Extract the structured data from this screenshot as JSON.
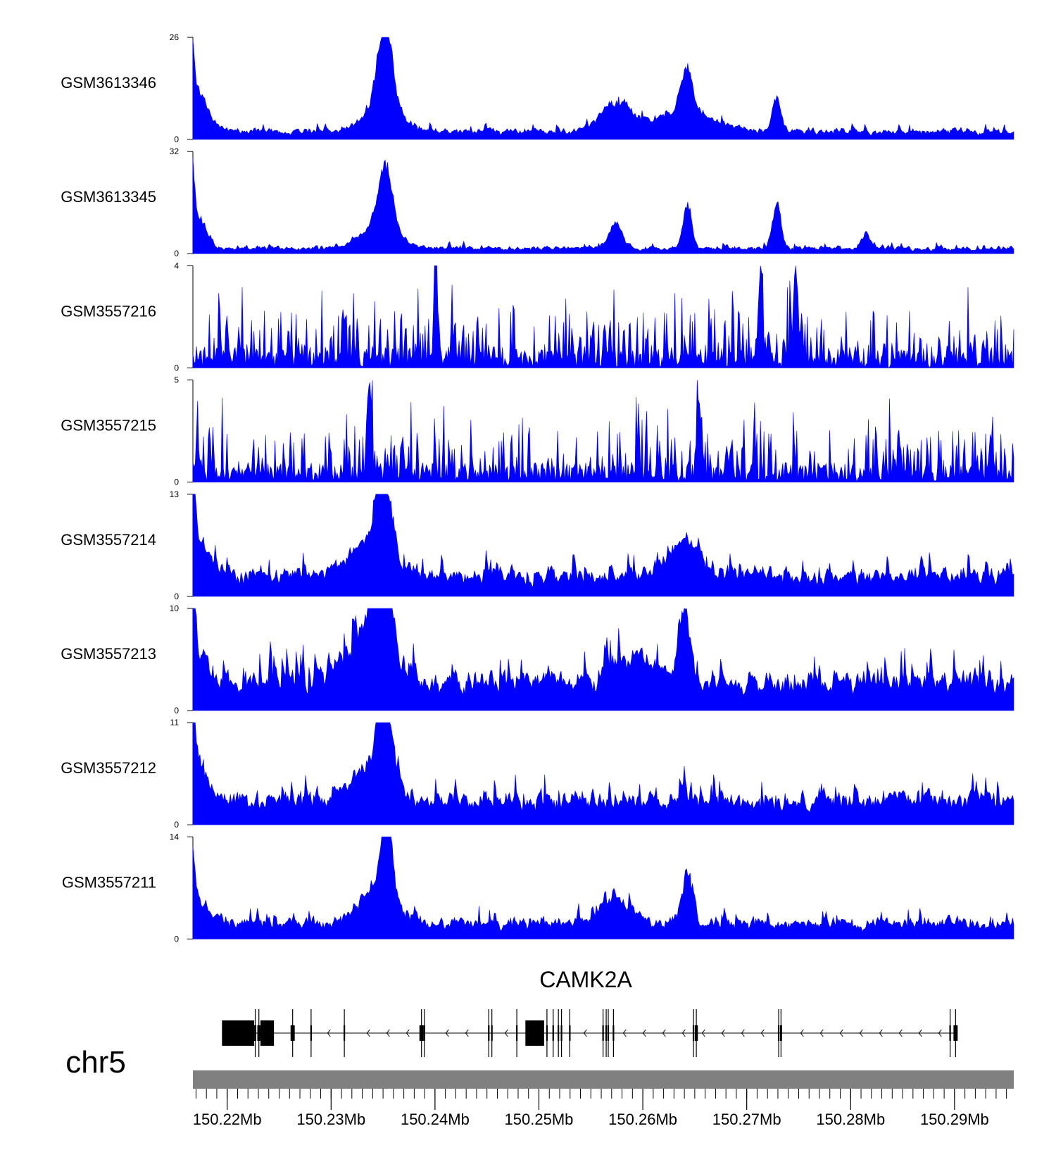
{
  "chart_data": {
    "type": "area",
    "description_free": true,
    "track_color": "#0000ff",
    "x_range": [
      150.2167,
      150.2957
    ],
    "x_units": "Mb",
    "tracks": [
      {
        "label": "GSM3613346",
        "ymax_label": "26",
        "ymin_label": "0",
        "ylim": [
          0,
          26
        ],
        "baseline": 1.2,
        "noise": 1.4,
        "seed": 11,
        "peaks": [
          {
            "pos": 150.2164,
            "height": 26,
            "width": 0.0003
          },
          {
            "pos": 150.2168,
            "height": 12,
            "width": 0.0012
          },
          {
            "pos": 150.2352,
            "height": 22,
            "width": 0.0006
          },
          {
            "pos": 150.235,
            "height": 11,
            "width": 0.0015
          },
          {
            "pos": 150.2574,
            "height": 8,
            "width": 0.0015
          },
          {
            "pos": 150.2642,
            "height": 13,
            "width": 0.0006
          },
          {
            "pos": 150.2642,
            "height": 5,
            "width": 0.003
          },
          {
            "pos": 150.2729,
            "height": 9,
            "width": 0.0004
          }
        ]
      },
      {
        "label": "GSM3613345",
        "ymax_label": "32",
        "ymin_label": "0",
        "ylim": [
          0,
          32
        ],
        "baseline": 1.0,
        "noise": 1.2,
        "seed": 23,
        "peaks": [
          {
            "pos": 150.2164,
            "height": 32,
            "width": 0.0003
          },
          {
            "pos": 150.2168,
            "height": 12,
            "width": 0.001
          },
          {
            "pos": 150.2352,
            "height": 22,
            "width": 0.0007
          },
          {
            "pos": 150.2347,
            "height": 7,
            "width": 0.0018
          },
          {
            "pos": 150.2574,
            "height": 9,
            "width": 0.0006
          },
          {
            "pos": 150.2643,
            "height": 16,
            "width": 0.0004
          },
          {
            "pos": 150.2729,
            "height": 16,
            "width": 0.0004
          },
          {
            "pos": 150.2815,
            "height": 5,
            "width": 0.0004
          }
        ]
      },
      {
        "label": "GSM3557216",
        "ymax_label": "4",
        "ymin_label": "0",
        "ylim": [
          0,
          4
        ],
        "baseline": 0.3,
        "noise": 1.4,
        "spiky": true,
        "seed": 37,
        "peaks": [
          {
            "pos": 150.2401,
            "height": 4,
            "width": 0.0002
          },
          {
            "pos": 150.2713,
            "height": 4,
            "width": 0.0002
          },
          {
            "pos": 150.2747,
            "height": 4,
            "width": 0.0002
          }
        ]
      },
      {
        "label": "GSM3557215",
        "ymax_label": "5",
        "ymin_label": "0",
        "ylim": [
          0,
          5
        ],
        "baseline": 0.3,
        "noise": 1.6,
        "spiky": true,
        "seed": 41,
        "peaks": [
          {
            "pos": 150.2337,
            "height": 5,
            "width": 0.0002
          },
          {
            "pos": 150.2654,
            "height": 4.4,
            "width": 0.0002
          }
        ]
      },
      {
        "label": "GSM3557214",
        "ymax_label": "13",
        "ymin_label": "0",
        "ylim": [
          0,
          13
        ],
        "baseline": 1.6,
        "noise": 1.8,
        "seed": 53,
        "peaks": [
          {
            "pos": 150.2164,
            "height": 13,
            "width": 0.0004
          },
          {
            "pos": 150.2168,
            "height": 6,
            "width": 0.0012
          },
          {
            "pos": 150.235,
            "height": 12,
            "width": 0.0008
          },
          {
            "pos": 150.233,
            "height": 4,
            "width": 0.002
          },
          {
            "pos": 150.264,
            "height": 5,
            "width": 0.0015
          }
        ]
      },
      {
        "label": "GSM3557213",
        "ymax_label": "10",
        "ymin_label": "0",
        "ylim": [
          0,
          10
        ],
        "baseline": 1.5,
        "noise": 2.2,
        "seed": 67,
        "peaks": [
          {
            "pos": 150.2164,
            "height": 10,
            "width": 0.0004
          },
          {
            "pos": 150.2168,
            "height": 4,
            "width": 0.0012
          },
          {
            "pos": 150.235,
            "height": 10,
            "width": 0.001
          },
          {
            "pos": 150.233,
            "height": 5,
            "width": 0.0018
          },
          {
            "pos": 150.264,
            "height": 7.5,
            "width": 0.0006
          },
          {
            "pos": 150.259,
            "height": 3,
            "width": 0.002
          }
        ]
      },
      {
        "label": "GSM3557212",
        "ymax_label": "11",
        "ymin_label": "0",
        "ylim": [
          0,
          11
        ],
        "baseline": 1.6,
        "noise": 1.8,
        "seed": 79,
        "peaks": [
          {
            "pos": 150.2164,
            "height": 11,
            "width": 0.0004
          },
          {
            "pos": 150.2168,
            "height": 5,
            "width": 0.0012
          },
          {
            "pos": 150.2352,
            "height": 11,
            "width": 0.0007
          },
          {
            "pos": 150.2335,
            "height": 4,
            "width": 0.0018
          }
        ]
      },
      {
        "label": "GSM3557211",
        "ymax_label": "14",
        "ymin_label": "0",
        "ylim": [
          0,
          14
        ],
        "baseline": 1.2,
        "noise": 1.6,
        "seed": 97,
        "peaks": [
          {
            "pos": 150.2164,
            "height": 12,
            "width": 0.0004
          },
          {
            "pos": 150.2168,
            "height": 4,
            "width": 0.0012
          },
          {
            "pos": 150.2353,
            "height": 14,
            "width": 0.0005
          },
          {
            "pos": 150.2345,
            "height": 5,
            "width": 0.0018
          },
          {
            "pos": 150.2643,
            "height": 8,
            "width": 0.0005
          },
          {
            "pos": 150.2574,
            "height": 4,
            "width": 0.0015
          }
        ]
      }
    ],
    "gene": {
      "name": "CAMK2A",
      "strand": "-",
      "start": 150.2195,
      "end": 150.2903,
      "thick_start": 150.2195,
      "thick_end": 150.2513,
      "exons": [
        {
          "start": 150.2195,
          "end": 150.2226
        },
        {
          "start": 150.2226,
          "end": 150.2228
        },
        {
          "start": 150.2229,
          "end": 150.2232
        },
        {
          "start": 150.2232,
          "end": 150.2245
        },
        {
          "start": 150.2261,
          "end": 150.2265
        },
        {
          "start": 150.228,
          "end": 150.2281
        },
        {
          "start": 150.2312,
          "end": 150.2313
        },
        {
          "start": 150.2385,
          "end": 150.2389
        },
        {
          "start": 150.2389,
          "end": 150.239
        },
        {
          "start": 150.2451,
          "end": 150.2452
        },
        {
          "start": 150.2454,
          "end": 150.2455
        },
        {
          "start": 150.2478,
          "end": 150.2479
        },
        {
          "start": 150.2487,
          "end": 150.2505
        },
        {
          "start": 150.2507,
          "end": 150.2508
        },
        {
          "start": 150.2513,
          "end": 150.2514
        },
        {
          "start": 150.2518,
          "end": 150.2519
        },
        {
          "start": 150.2521,
          "end": 150.2522
        },
        {
          "start": 150.2529,
          "end": 150.253
        },
        {
          "start": 150.2561,
          "end": 150.2562
        },
        {
          "start": 150.2564,
          "end": 150.2565
        },
        {
          "start": 150.2566,
          "end": 150.2567
        },
        {
          "start": 150.2571,
          "end": 150.2572
        },
        {
          "start": 150.2648,
          "end": 150.2649
        },
        {
          "start": 150.265,
          "end": 150.2653
        },
        {
          "start": 150.273,
          "end": 150.2731
        },
        {
          "start": 150.2732,
          "end": 150.2734
        },
        {
          "start": 150.2895,
          "end": 150.2896
        },
        {
          "start": 150.2899,
          "end": 150.2903
        }
      ]
    },
    "axis": {
      "chromosome": "chr5",
      "ticks": [
        {
          "pos": 150.22,
          "label": "150.22Mb"
        },
        {
          "pos": 150.23,
          "label": "150.23Mb"
        },
        {
          "pos": 150.24,
          "label": "150.24Mb"
        },
        {
          "pos": 150.25,
          "label": "150.25Mb"
        },
        {
          "pos": 150.26,
          "label": "150.26Mb"
        },
        {
          "pos": 150.27,
          "label": "150.27Mb"
        },
        {
          "pos": 150.28,
          "label": "150.28Mb"
        },
        {
          "pos": 150.29,
          "label": "150.29Mb"
        }
      ],
      "minor_tick_step": 0.001
    }
  }
}
